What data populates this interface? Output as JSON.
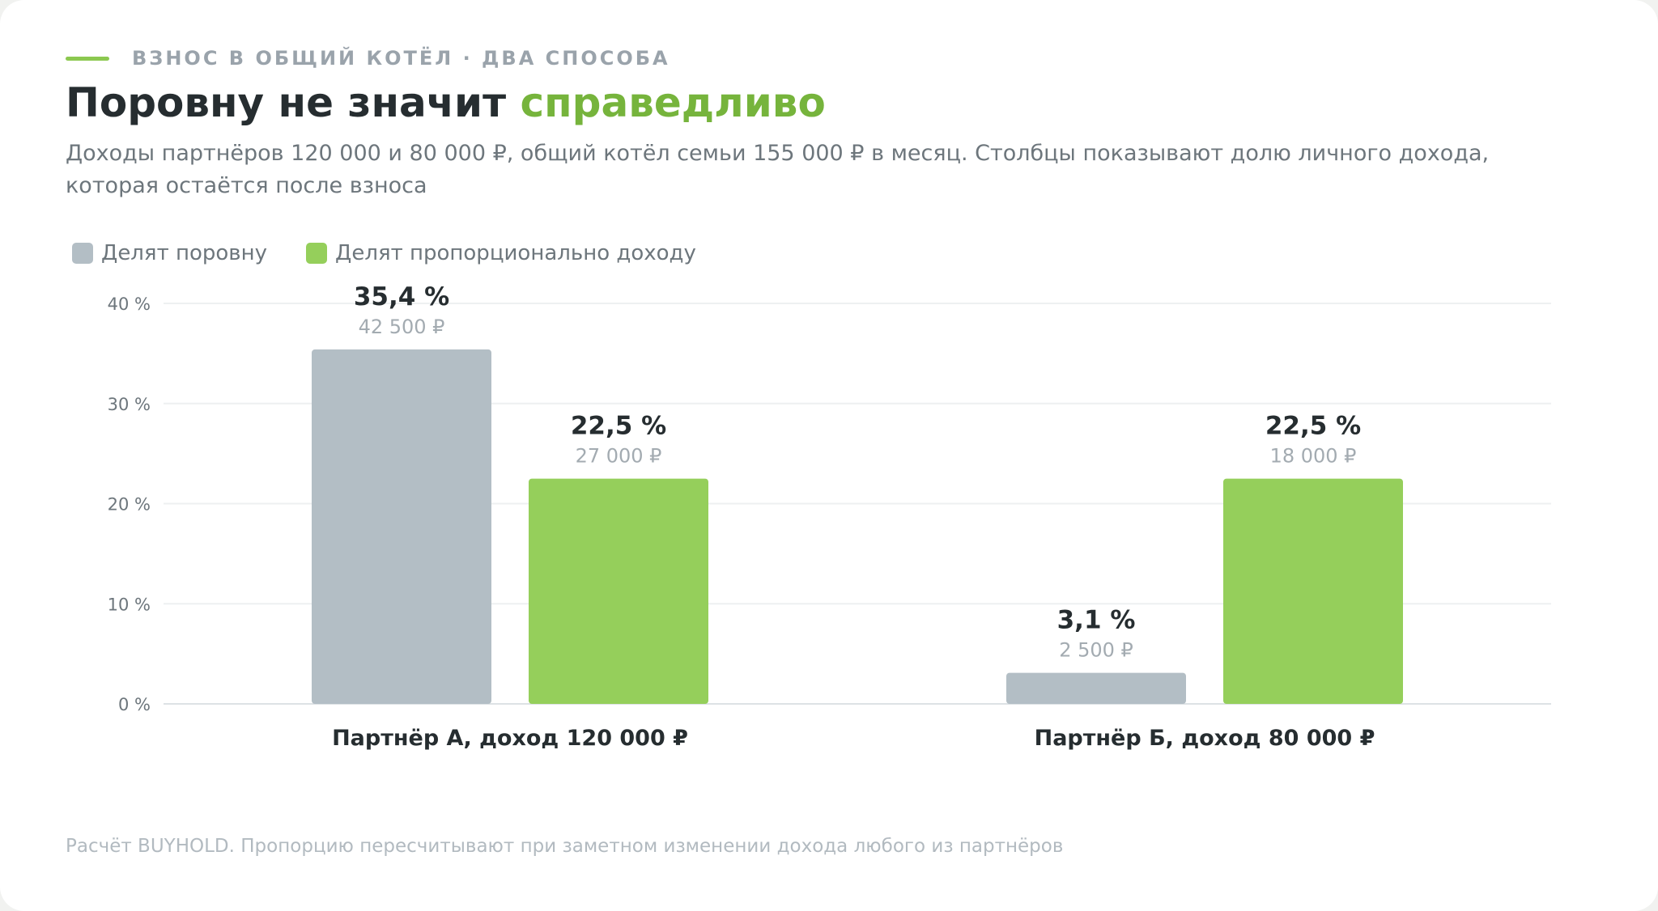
{
  "header": {
    "eyebrow": "ВЗНОС В ОБЩИЙ КОТЁЛ · ДВА СПОСОБА",
    "title_main": "Поровну не значит",
    "title_accent": "справедливо",
    "subtitle": "Доходы партнёров 120 000 и 80 000 ₽, общий котёл семьи 155 000 ₽ в месяц. Столбцы показывают долю личного дохода, которая остаётся после взноса"
  },
  "colors": {
    "equal": "#b3bec5",
    "proportional": "#95cf5b",
    "accent": "#76b43c"
  },
  "chart_data": {
    "type": "bar",
    "categories": [
      "Партнёр А, доход 120 000 ₽",
      "Партнёр Б, доход 80 000 ₽"
    ],
    "series": [
      {
        "name": "Делят поровну",
        "values": [
          35.4,
          3.1
        ],
        "value_labels": [
          "35,4 %",
          "3,1 %"
        ],
        "amount_labels": [
          "42 500 ₽",
          "2 500 ₽"
        ]
      },
      {
        "name": "Делят пропорционально доходу",
        "values": [
          22.5,
          22.5
        ],
        "value_labels": [
          "22,5 %",
          "22,5 %"
        ],
        "amount_labels": [
          "27 000 ₽",
          "18 000 ₽"
        ]
      }
    ],
    "ylim": [
      0,
      40
    ],
    "yticks": [
      0,
      10,
      20,
      30,
      40
    ],
    "ytick_labels": [
      "0 %",
      "10 %",
      "20 %",
      "30 %",
      "40 %"
    ],
    "grid": true,
    "legend": "top-left"
  },
  "footnote": "Расчёт BUYHOLD. Пропорцию пересчитывают при заметном изменении дохода любого из партнёров"
}
